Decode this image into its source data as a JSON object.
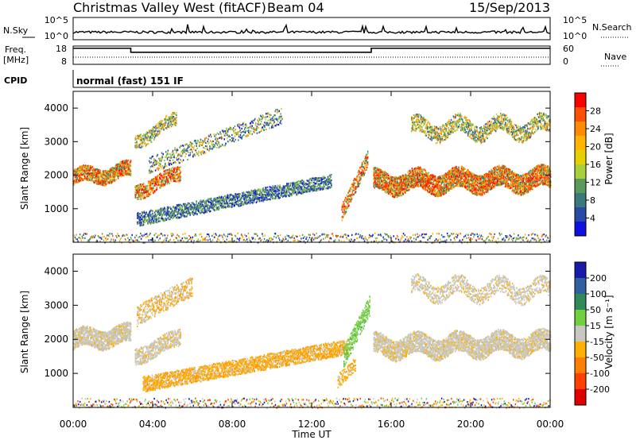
{
  "header": {
    "title": "Christmas Valley West (fitACF)",
    "beam": "Beam 04",
    "date": "15/Sep/2013"
  },
  "panel_labels": {
    "nsky": "N.Sky",
    "nsearch": "N.Search",
    "freq": "Freq.",
    "freq_unit": "[MHz]",
    "nave": "Nave",
    "cpid": "CPID",
    "cpid_text": "normal (fast) 151 IF"
  },
  "noise_ticks": {
    "top": "10^5",
    "bottom": "10^0"
  },
  "freq_ticks": {
    "top": "18",
    "bottom": "8"
  },
  "nave_ticks": {
    "top": "60",
    "bottom": "0"
  },
  "x_ticks": [
    "00:00",
    "04:00",
    "08:00",
    "12:00",
    "16:00",
    "20:00",
    "00:00"
  ],
  "y_ticks": [
    "1000",
    "2000",
    "3000",
    "4000"
  ],
  "xlabel": "Time UT",
  "ylabel": "Slant Range [km]",
  "power_bar": {
    "label": "Power [dB]",
    "ticks": [
      "28",
      "24",
      "20",
      "16",
      "12",
      "8",
      "4"
    ],
    "colors": [
      "#ff0000",
      "#ff5000",
      "#ff8c00",
      "#ffb400",
      "#e6d000",
      "#a8cf3c",
      "#5a9a5a",
      "#3a7a7a",
      "#2a4aa8",
      "#1010e0"
    ]
  },
  "velocity_bar": {
    "label": "Velocity [m s⁻¹]",
    "ticks": [
      "200",
      "100",
      "50",
      "15",
      "-15",
      "-50",
      "-100",
      "-200"
    ],
    "colors": [
      "#1a1aaa",
      "#3060a0",
      "#2e8b57",
      "#70d040",
      "#c8c8c0",
      "#ffb000",
      "#ff8000",
      "#ff4000",
      "#e00000"
    ]
  },
  "chart_data": [
    {
      "type": "line",
      "name": "sky noise",
      "xlim": [
        0,
        24
      ],
      "ylabel": "N.Sky",
      "scale": "log",
      "ylim": [
        1,
        100000
      ]
    },
    {
      "type": "line",
      "name": "transmit frequency",
      "xlim": [
        0,
        24
      ],
      "ylim": [
        8,
        18
      ],
      "x": [
        0,
        2.9,
        2.9,
        15,
        15,
        24
      ],
      "values": [
        16.8,
        16.8,
        14.6,
        14.6,
        16.8,
        16.8
      ]
    },
    {
      "type": "heatmap",
      "name": "Power",
      "xlabel": "Time UT",
      "ylabel": "Slant Range [km]",
      "xlim": [
        0,
        24
      ],
      "ylim": [
        0,
        4500
      ],
      "zlabel": "Power [dB]",
      "zlim": [
        0,
        30
      ]
    },
    {
      "type": "heatmap",
      "name": "Velocity",
      "xlabel": "Time UT",
      "ylabel": "Slant Range [km]",
      "xlim": [
        0,
        24
      ],
      "ylim": [
        0,
        4500
      ],
      "zlabel": "Velocity [m s⁻¹]",
      "zlim": [
        -250,
        250
      ]
    }
  ]
}
